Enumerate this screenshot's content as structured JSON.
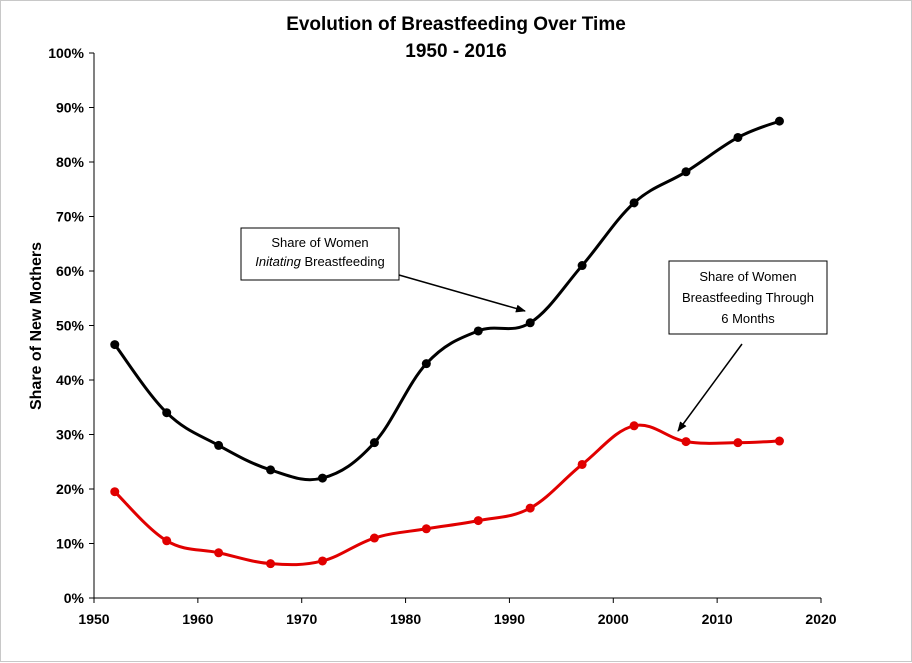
{
  "chart_data": {
    "type": "line",
    "title": "Evolution of Breastfeeding Over Time",
    "subtitle": "1950 - 2016",
    "xlabel": "",
    "ylabel": "Share of New Mothers",
    "xlim": [
      1950,
      2020
    ],
    "ylim": [
      0,
      100
    ],
    "x_ticks": [
      1950,
      1960,
      1970,
      1980,
      1990,
      2000,
      2010,
      2020
    ],
    "y_ticks": [
      "0%",
      "10%",
      "20%",
      "30%",
      "40%",
      "50%",
      "60%",
      "70%",
      "80%",
      "90%",
      "100%"
    ],
    "grid": false,
    "series": [
      {
        "color": "#000000",
        "x": [
          1952,
          1957,
          1962,
          1967,
          1972,
          1977,
          1982,
          1987,
          1992,
          1997,
          2002,
          2007,
          2012,
          2016
        ],
        "values": [
          46.5,
          34,
          28,
          23.5,
          22,
          28.5,
          43,
          49,
          50.5,
          61,
          72.5,
          78.2,
          84.5,
          87.5
        ]
      },
      {
        "color": "#e10000",
        "x": [
          1952,
          1957,
          1962,
          1967,
          1972,
          1977,
          1982,
          1987,
          1992,
          1997,
          2002,
          2007,
          2012,
          2016
        ],
        "values": [
          19.5,
          10.5,
          8.3,
          6.3,
          6.8,
          11,
          12.7,
          14.2,
          16.5,
          24.5,
          31.6,
          28.7,
          28.5,
          28.8
        ]
      }
    ],
    "annotations": [
      {
        "lines": [
          "Share of Women",
          "Initating Breastfeeding"
        ]
      },
      {
        "lines": [
          "Share of Women",
          "Breastfeeding Through",
          "6 Months"
        ]
      }
    ]
  }
}
